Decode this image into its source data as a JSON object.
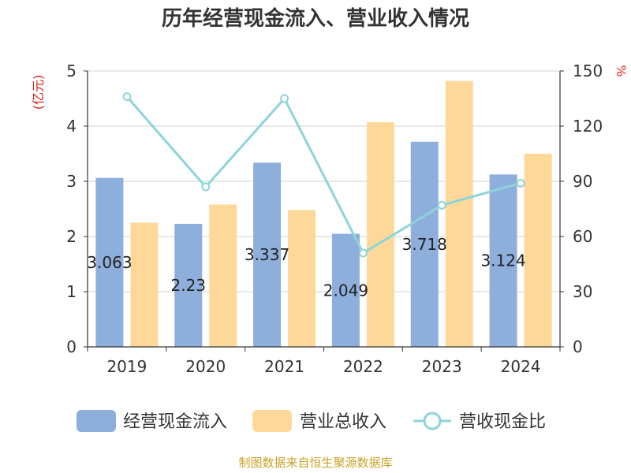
{
  "chart_data": {
    "type": "bar",
    "title": "历年经营现金流入、营业收入情况",
    "categories": [
      "2019",
      "2020",
      "2021",
      "2022",
      "2023",
      "2024"
    ],
    "series": [
      {
        "name": "经营现金流入",
        "type": "bar",
        "axis": "left",
        "color": "#8eaedb",
        "values": [
          3.063,
          2.23,
          3.337,
          2.049,
          3.718,
          3.124
        ],
        "data_labels": [
          "3.063",
          "2.23",
          "3.337",
          "2.049",
          "3.718",
          "3.124"
        ]
      },
      {
        "name": "营业总收入",
        "type": "bar",
        "axis": "left",
        "color": "#fed899",
        "values": [
          2.25,
          2.58,
          2.48,
          4.07,
          4.82,
          3.5
        ]
      },
      {
        "name": "营收现金比",
        "type": "line",
        "axis": "right",
        "color": "#8dd4da",
        "values": [
          136,
          87,
          135,
          51,
          77,
          89
        ]
      }
    ],
    "y_left": {
      "unit": "(亿元)",
      "ylim": [
        0,
        5
      ],
      "ticks": [
        "0",
        "1",
        "2",
        "3",
        "4",
        "5"
      ]
    },
    "y_right": {
      "unit": "%",
      "ylim": [
        0,
        150
      ],
      "ticks": [
        "0",
        "30",
        "60",
        "90",
        "120",
        "150"
      ]
    },
    "grid": true,
    "legend_position": "bottom"
  },
  "source": "制图数据来自恒生聚源数据库"
}
